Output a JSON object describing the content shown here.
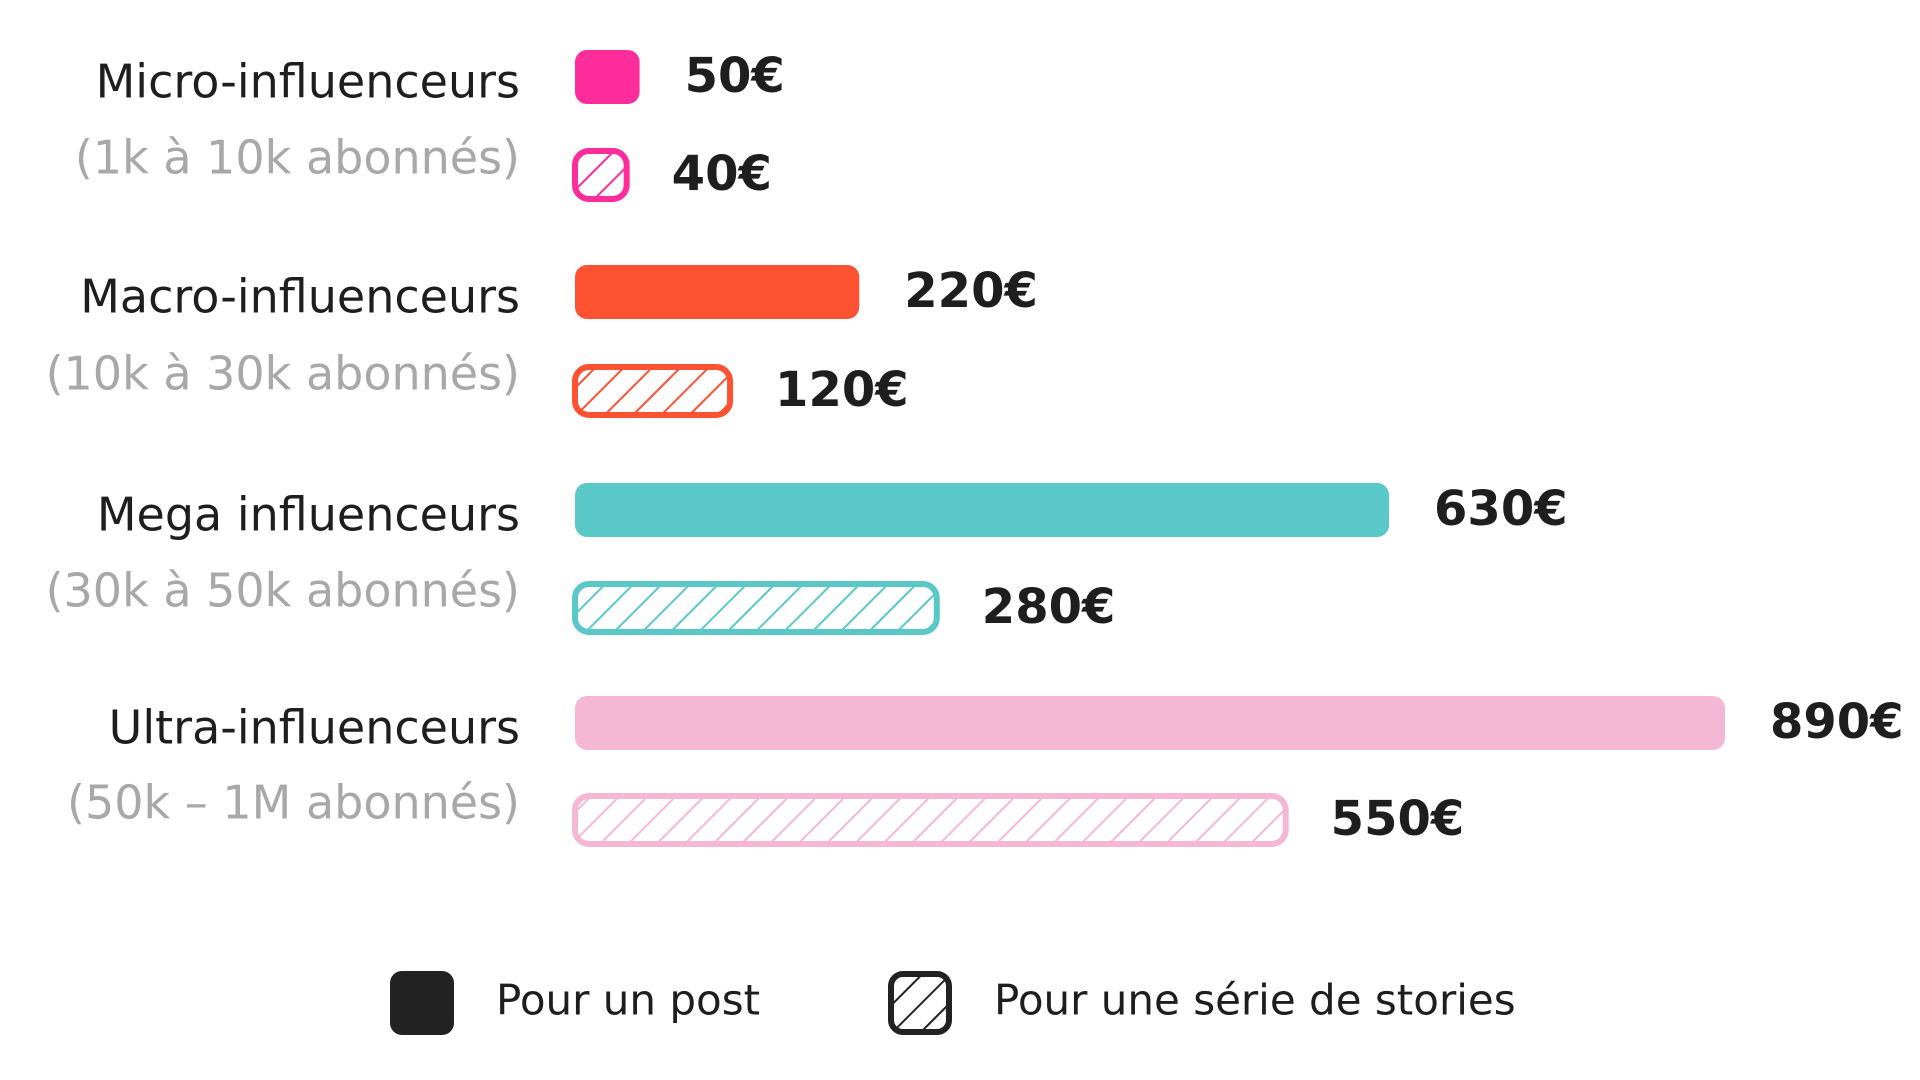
{
  "chart_data": {
    "type": "bar",
    "orientation": "horizontal",
    "categories": [
      "Micro-influenceurs",
      "Macro-influenceurs",
      "Mega influenceurs",
      "Ultra-influenceurs"
    ],
    "subcategories": [
      "(1k à 10k abonnés)",
      "(10k à 30k abonnés)",
      "(30k à 50k abonnés)",
      "(50k – 1M abonnés)"
    ],
    "category_colors": [
      "#ff2d9b",
      "#ff5233",
      "#5bc8c8",
      "#f5b8d4"
    ],
    "series": [
      {
        "name": "Pour un post",
        "color": "#222222",
        "pattern": "solid",
        "values": [
          50,
          220,
          630,
          890
        ],
        "value_labels": [
          "50€",
          "220€",
          "630€",
          "890€"
        ]
      },
      {
        "name": "Pour une série de stories",
        "color": "#222222",
        "pattern": "hatch",
        "values": [
          40,
          120,
          280,
          550
        ],
        "value_labels": [
          "40€",
          "120€",
          "280€",
          "550€"
        ]
      }
    ]
  }
}
